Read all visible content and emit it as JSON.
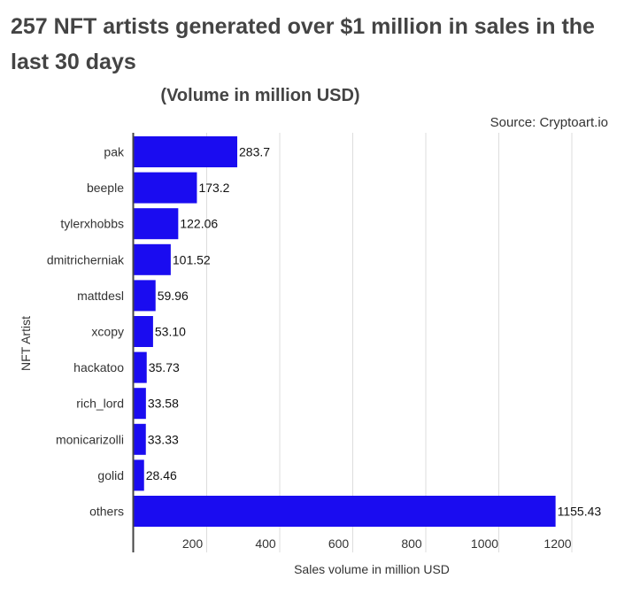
{
  "title": "257 NFT artists generated over $1 million in sales in the last 30 days",
  "subtitle": "(Volume in million USD)",
  "source": "Source: Cryptoart.io",
  "colors": {
    "bar": "#1a0cf0",
    "grid": "#dddddd",
    "axis": "#444444",
    "text": "#333333"
  },
  "chart_data": {
    "type": "bar",
    "orientation": "horizontal",
    "categories": [
      "pak",
      "beeple",
      "tylerxhobbs",
      "dmitricherniak",
      "mattdesl",
      "xcopy",
      "hackatoo",
      "rich_lord",
      "monicarizolli",
      "golid",
      "others"
    ],
    "values": [
      283.7,
      173.2,
      122.06,
      101.52,
      59.96,
      53.1,
      35.73,
      33.58,
      33.33,
      28.46,
      1155.43
    ],
    "value_labels": [
      "283.7",
      "173.2",
      "122.06",
      "101.52",
      "59.96",
      "53.10",
      "35.73",
      "33.58",
      "33.33",
      "28.46",
      "1155.43"
    ],
    "xlabel": "Sales volume in million USD",
    "ylabel": "NFT Artist",
    "xlim": [
      0,
      1200
    ],
    "xticks": [
      200,
      400,
      600,
      800,
      1000,
      1200
    ],
    "grid": true,
    "legend": false
  }
}
